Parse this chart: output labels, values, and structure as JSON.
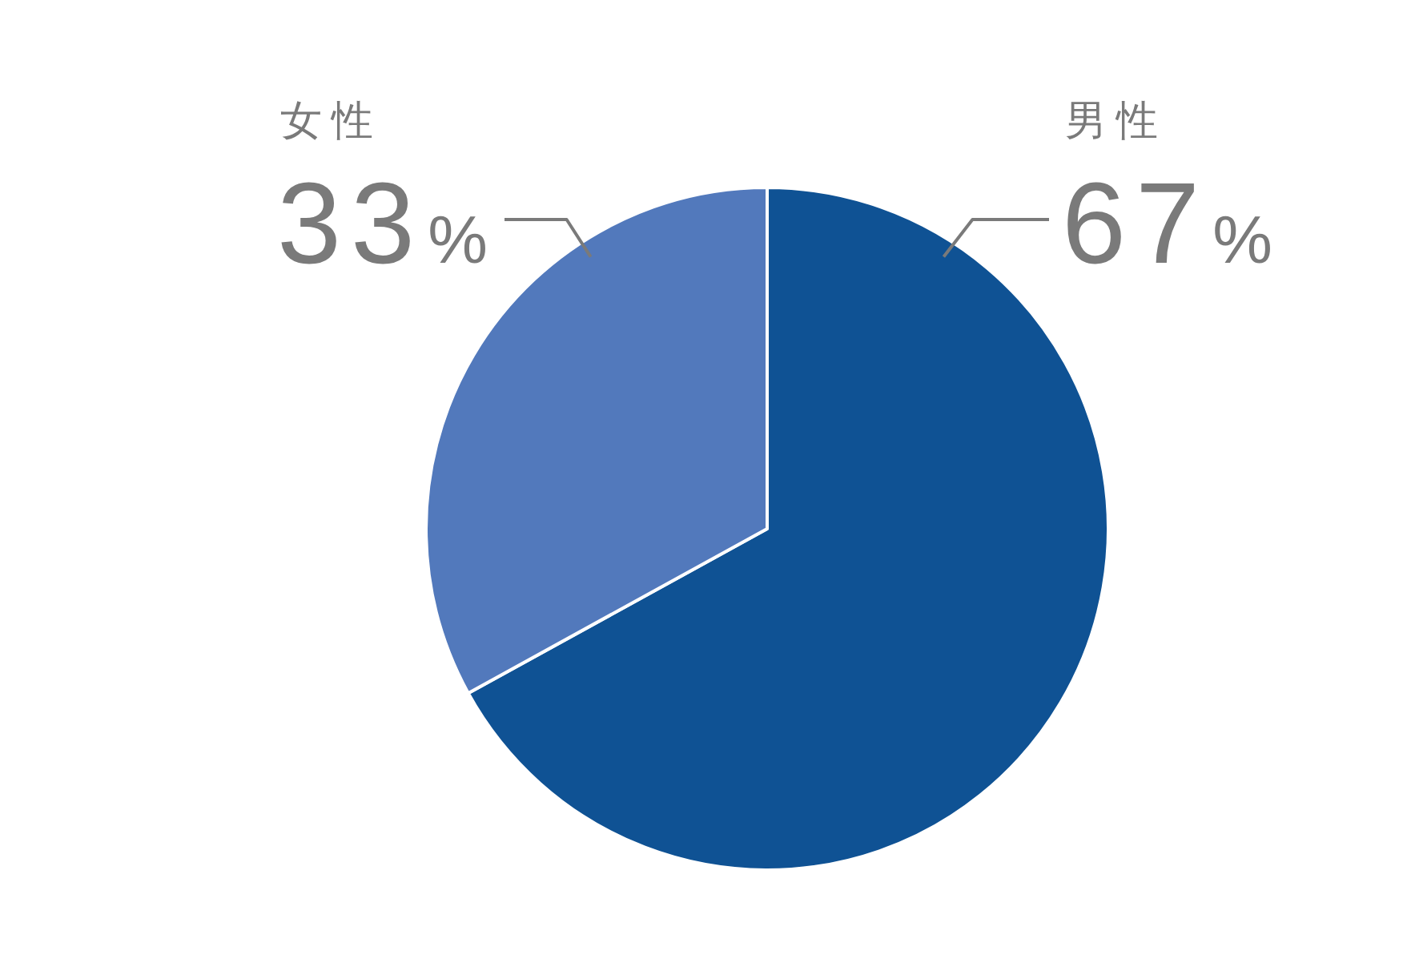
{
  "chart_data": {
    "type": "pie",
    "categories": [
      "男性",
      "女性"
    ],
    "values": [
      67,
      33
    ],
    "colors": [
      "#0f5294",
      "#5279bc"
    ],
    "value_labels": [
      "67%",
      "33%"
    ]
  }
}
